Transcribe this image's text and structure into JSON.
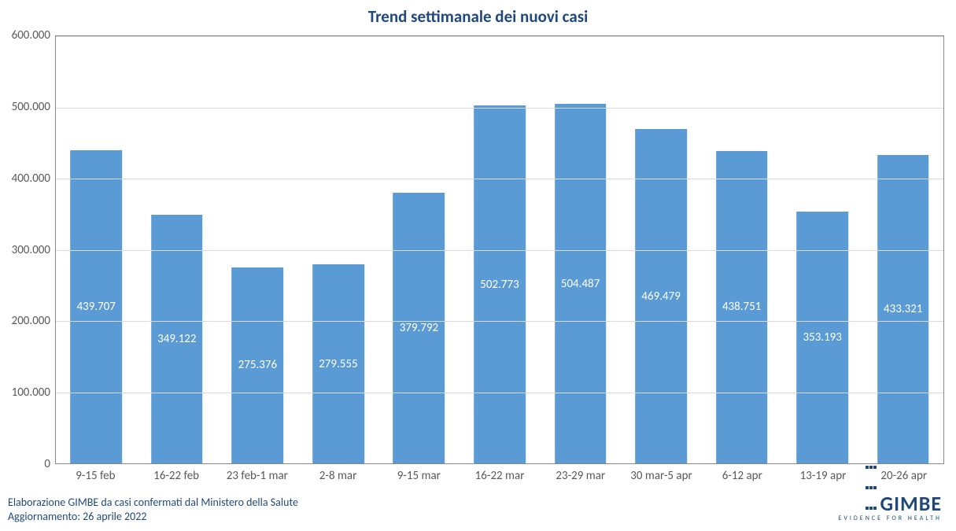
{
  "chart": {
    "type": "bar",
    "title": "Trend settimanale dei nuovi casi",
    "title_color": "#1f497d",
    "title_fontsize": 21,
    "background_color": "#ffffff",
    "plot_border_color": "#888888",
    "grid_color": "#d9d9d9",
    "axis_label_color": "#595959",
    "axis_label_fontsize": 15,
    "bar_color": "#5b9bd5",
    "bar_label_color": "#ffffff",
    "bar_label_fontsize": 15,
    "bar_width_pct": 64,
    "ylim": [
      0,
      600000
    ],
    "ytick_step": 100000,
    "ytick_labels": [
      "0",
      "100.000",
      "200.000",
      "300.000",
      "400.000",
      "500.000",
      "600.000"
    ],
    "categories": [
      "9-15 feb",
      "16-22 feb",
      "23 feb-1 mar",
      "2-8 mar",
      "9-15 mar",
      "16-22 mar",
      "23-29 mar",
      "30 mar-5 apr",
      "6-12 apr",
      "13-19 apr",
      "20-26 apr"
    ],
    "values": [
      439707,
      349122,
      275376,
      279555,
      379792,
      502773,
      504487,
      469479,
      438751,
      353193,
      433321
    ],
    "value_labels": [
      "439.707",
      "349.122",
      "275.376",
      "279.555",
      "379.792",
      "502.773",
      "504.487",
      "469.479",
      "438.751",
      "353.193",
      "433.321"
    ]
  },
  "footer": {
    "line1": "Elaborazione GIMBE da casi confermati dal Ministero della Salute",
    "line2": "Aggiornamento: 26 aprile 2022",
    "color": "#1f497d",
    "fontsize": 14
  },
  "logo": {
    "text": "GIMBE",
    "tagline": "EVIDENCE FOR HEALTH",
    "color": "#1f497d",
    "text_fontsize": 26,
    "tagline_fontsize": 8
  }
}
